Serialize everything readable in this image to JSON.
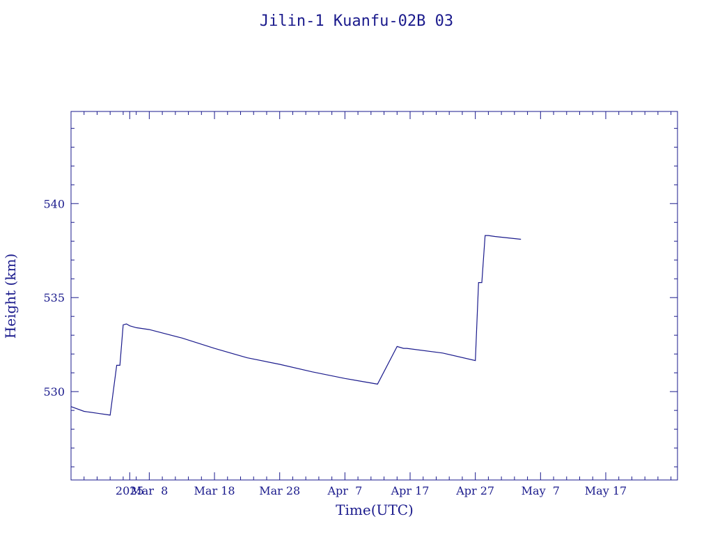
{
  "colors": {
    "ink": "#1a1a8c",
    "background": "#ffffff"
  },
  "chart_data": {
    "type": "line",
    "title": "Jilin-1 Kuanfu-02B 03",
    "xlabel": "Time(UTC)",
    "ylabel": "Height (km)",
    "xlim": [
      "2025-02-17",
      "2025-05-21"
    ],
    "ylim": [
      525.3,
      544.9
    ],
    "x_tick_labels": [
      {
        "date": "2025-02-26",
        "label": "2025"
      },
      {
        "date": "2025-03-01",
        "label": "Mar  8"
      },
      {
        "date": "2025-03-11",
        "label": "Mar 18"
      },
      {
        "date": "2025-03-21",
        "label": "Mar 28"
      },
      {
        "date": "2025-03-31",
        "label": "Apr  7"
      },
      {
        "date": "2025-04-10",
        "label": "Apr 17"
      },
      {
        "date": "2025-04-20",
        "label": "Apr 27"
      },
      {
        "date": "2025-04-30",
        "label": "May  7"
      },
      {
        "date": "2025-05-10",
        "label": "May 17"
      }
    ],
    "y_ticks": [
      530,
      535,
      540
    ],
    "grid": false,
    "series": [
      {
        "x": [
          "2025-02-17",
          "2025-02-19",
          "2025-02-21",
          "2025-02-23",
          "2025-02-24",
          "2025-02-24T12:00",
          "2025-02-25",
          "2025-02-25T12:00",
          "2025-02-26",
          "2025-02-27",
          "2025-03-01",
          "2025-03-06",
          "2025-03-11",
          "2025-03-16",
          "2025-03-21",
          "2025-03-26",
          "2025-03-31",
          "2025-04-05",
          "2025-04-08",
          "2025-04-09",
          "2025-04-09T12:00",
          "2025-04-15",
          "2025-04-20",
          "2025-04-20T12:00",
          "2025-04-21",
          "2025-04-21T12:00",
          "2025-04-22",
          "2025-04-23",
          "2025-04-27"
        ],
        "values": [
          529.2,
          528.95,
          528.85,
          528.75,
          531.4,
          531.4,
          533.55,
          533.6,
          533.5,
          533.4,
          533.3,
          532.85,
          532.3,
          531.8,
          531.45,
          531.05,
          530.7,
          530.4,
          532.4,
          532.3,
          532.3,
          532.05,
          531.65,
          535.8,
          535.8,
          538.3,
          538.3,
          538.25,
          538.1
        ]
      }
    ]
  }
}
